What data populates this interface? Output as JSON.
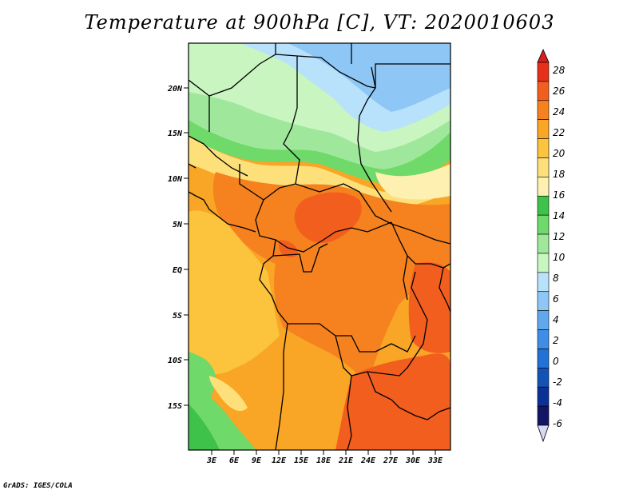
{
  "title": "Temperature at 900hPa [C], VT: 2020010603",
  "credit": "GrADS: IGES/COLA",
  "lat_labels": [
    "20N",
    "15N",
    "10N",
    "5N",
    "EQ",
    "5S",
    "10S",
    "15S"
  ],
  "lon_labels": [
    "3E",
    "6E",
    "9E",
    "12E",
    "15E",
    "18E",
    "21E",
    "24E",
    "27E",
    "30E",
    "33E"
  ],
  "colorbar": {
    "labels": [
      "28",
      "26",
      "24",
      "22",
      "20",
      "18",
      "16",
      "14",
      "12",
      "10",
      "8",
      "6",
      "4",
      "2",
      "0",
      "-2",
      "-4",
      "-6"
    ],
    "colors_top_to_bottom": [
      "#e63019",
      "#f25e1e",
      "#f5821e",
      "#f9a525",
      "#fbc43c",
      "#fde07a",
      "#fdf0b0",
      "#3ec24a",
      "#6fd96a",
      "#9fe79a",
      "#c8f5c0",
      "#b8e1fb",
      "#8ec7f5",
      "#60a8ee",
      "#3f8ee6",
      "#2171d6",
      "#1453b6",
      "#0a3296",
      "#131566"
    ]
  },
  "legend_colors": {
    "cold_tip": "#d8d8f5",
    "warm_tip": "#d61e1e"
  }
}
